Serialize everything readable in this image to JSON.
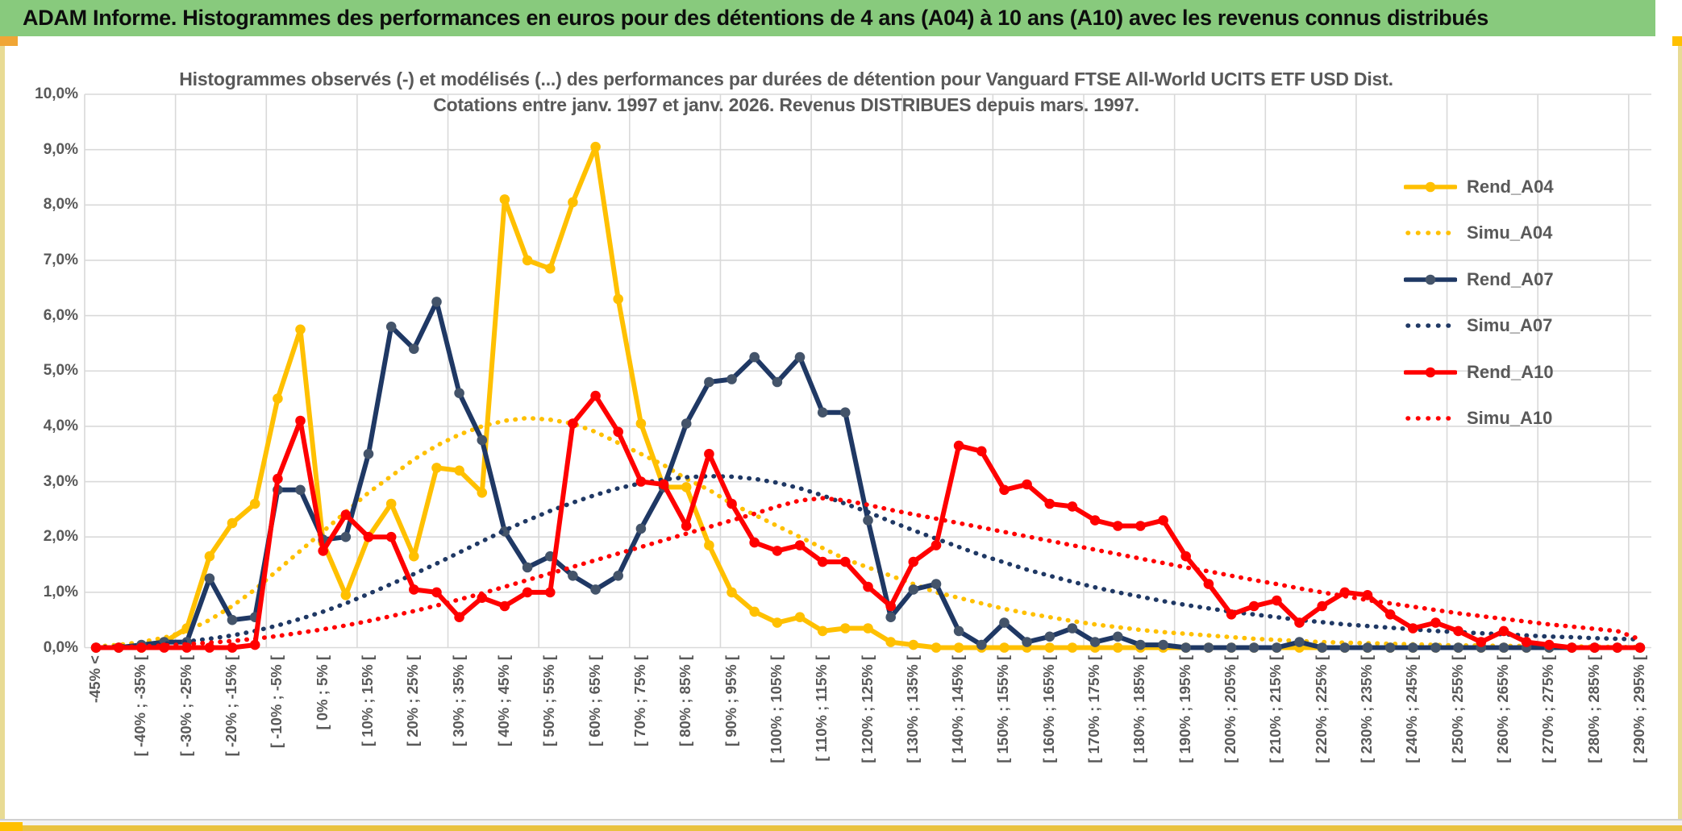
{
  "window": {
    "title": "ADAM Informe. Histogrammes des performances en euros pour des détentions de 4 ans (A04) à 10 ans (A10) avec les revenus connus distribués",
    "colors": {
      "titlebar_green": "#88CA7D",
      "text_gray": "#595959",
      "gridline_gray": "#D9D9D9",
      "gold": "#FFC000",
      "navy": "#1F3864",
      "navy_marker": "#44546A",
      "red": "#FF0000"
    }
  },
  "chart_data": {
    "type": "line",
    "title_line1": "Histogrammes observés (-) et modélisés (...) des performances par durées de détention pour Vanguard FTSE All-World UCITS ETF USD Dist.",
    "title_line2": "Cotations entre janv. 1997 et janv. 2026. Revenus DISTRIBUES depuis mars. 1997.",
    "ylabel": "",
    "xlabel": "",
    "ylim": [
      0,
      10
    ],
    "grid": true,
    "bins": 69,
    "label_interval": 2,
    "gridline_interval": 4,
    "y_tick_labels": [
      "0,0%",
      "1,0%",
      "2,0%",
      "3,0%",
      "4,0%",
      "5,0%",
      "6,0%",
      "7,0%",
      "8,0%",
      "9,0%",
      "10,0%"
    ],
    "x_tick_labels": [
      "-45% <",
      "[ -40% ; -35% [",
      "[ -30% ; -25% [",
      "[ -20% ; -15% [",
      "[ -10% ; -5% [",
      "[ 0% ; 5% [",
      "[ 10% ; 15% [",
      "[ 20% ; 25% [",
      "[ 30% ; 35% [",
      "[ 40% ; 45% [",
      "[ 50% ; 55% [",
      "[ 60% ; 65% [",
      "[ 70% ; 75% [",
      "[ 80% ; 85% [",
      "[ 90% ; 95% [",
      "[ 100% ; 105% [",
      "[ 110% ; 115% [",
      "[ 120% ; 125% [",
      "[ 130% ; 135% [",
      "[ 140% ; 145% [",
      "[ 150% ; 155% [",
      "[ 160% ; 165% [",
      "[ 170% ; 175% [",
      "[ 180% ; 185% [",
      "[ 190% ; 195% [",
      "[ 200% ; 205% [",
      "[ 210% ; 215% [",
      "[ 220% ; 225% [",
      "[ 230% ; 235% [",
      "[ 240% ; 245% [",
      "[ 250% ; 255% [",
      "[ 260% ; 265% [",
      "[ 270% ; 275% [",
      "[ 280% ; 285% [",
      "[ 290% ; 295% ["
    ],
    "series": [
      {
        "name": "Rend_A04",
        "line": "solid",
        "color": "#FFC000",
        "marker_color": "#FFC000",
        "values": [
          0,
          0,
          0,
          0.1,
          0.35,
          1.65,
          2.25,
          2.6,
          4.5,
          5.75,
          1.9,
          0.95,
          2.0,
          2.6,
          1.65,
          3.25,
          3.2,
          2.8,
          8.1,
          7.0,
          6.85,
          8.05,
          9.05,
          6.3,
          4.05,
          2.9,
          2.9,
          1.85,
          1.0,
          0.65,
          0.45,
          0.55,
          0.3,
          0.35,
          0.35,
          0.1,
          0.05,
          0,
          0,
          0,
          0,
          0,
          0,
          0,
          0,
          0,
          0,
          0,
          0,
          0,
          0,
          0,
          0,
          0,
          0,
          0,
          0,
          0,
          0,
          0,
          0,
          0,
          0,
          0,
          0,
          0,
          0,
          0,
          0
        ]
      },
      {
        "name": "Simu_A04",
        "line": "dotted",
        "color": "#FFC000",
        "values": [
          0.02,
          0.05,
          0.1,
          0.18,
          0.3,
          0.5,
          0.75,
          1.05,
          1.4,
          1.75,
          2.1,
          2.45,
          2.8,
          3.1,
          3.4,
          3.65,
          3.85,
          4.0,
          4.1,
          4.15,
          4.12,
          4.05,
          3.9,
          3.7,
          3.5,
          3.3,
          3.05,
          2.85,
          2.6,
          2.4,
          2.2,
          2.0,
          1.8,
          1.6,
          1.45,
          1.3,
          1.15,
          1.0,
          0.9,
          0.8,
          0.7,
          0.62,
          0.55,
          0.48,
          0.42,
          0.37,
          0.32,
          0.28,
          0.25,
          0.22,
          0.19,
          0.16,
          0.14,
          0.12,
          0.1,
          0.09,
          0.08,
          0.07,
          0.06,
          0.05,
          0.04,
          0.04,
          0.03,
          0.03,
          0.02,
          0.02,
          0.02,
          0.01,
          0.01
        ]
      },
      {
        "name": "Rend_A07",
        "line": "solid",
        "color": "#1F3864",
        "marker_color": "#44546A",
        "values": [
          0,
          0,
          0.05,
          0.1,
          0.1,
          1.25,
          0.5,
          0.55,
          2.85,
          2.85,
          1.95,
          2.0,
          3.5,
          5.8,
          5.4,
          6.25,
          4.6,
          3.75,
          2.1,
          1.45,
          1.65,
          1.3,
          1.05,
          1.3,
          2.15,
          2.9,
          4.05,
          4.8,
          4.85,
          5.25,
          4.8,
          5.25,
          4.25,
          4.25,
          2.3,
          0.55,
          1.05,
          1.15,
          0.3,
          0.05,
          0.45,
          0.1,
          0.2,
          0.35,
          0.1,
          0.2,
          0.05,
          0.05,
          0,
          0,
          0,
          0,
          0,
          0.1,
          0,
          0,
          0,
          0,
          0,
          0,
          0,
          0,
          0,
          0,
          0,
          0,
          0,
          0,
          0
        ]
      },
      {
        "name": "Simu_A07",
        "line": "dotted",
        "color": "#1F3864",
        "values": [
          0.01,
          0.02,
          0.04,
          0.07,
          0.11,
          0.16,
          0.22,
          0.3,
          0.4,
          0.52,
          0.65,
          0.8,
          0.97,
          1.15,
          1.33,
          1.52,
          1.72,
          1.92,
          2.12,
          2.3,
          2.47,
          2.62,
          2.76,
          2.88,
          2.97,
          3.04,
          3.08,
          3.1,
          3.09,
          3.05,
          2.98,
          2.88,
          2.75,
          2.6,
          2.45,
          2.28,
          2.12,
          1.97,
          1.82,
          1.67,
          1.54,
          1.41,
          1.3,
          1.19,
          1.09,
          1.0,
          0.92,
          0.84,
          0.77,
          0.71,
          0.65,
          0.6,
          0.55,
          0.5,
          0.46,
          0.42,
          0.39,
          0.36,
          0.33,
          0.3,
          0.28,
          0.26,
          0.24,
          0.22,
          0.2,
          0.19,
          0.17,
          0.16,
          0.15
        ]
      },
      {
        "name": "Rend_A10",
        "line": "solid",
        "color": "#FF0000",
        "marker_color": "#FF0000",
        "values": [
          0,
          0,
          0,
          0,
          0,
          0,
          0,
          0.05,
          3.05,
          4.1,
          1.75,
          2.4,
          2.0,
          2.0,
          1.05,
          1.0,
          0.55,
          0.9,
          0.75,
          1.0,
          1.0,
          4.05,
          4.55,
          3.9,
          3.0,
          2.95,
          2.2,
          3.5,
          2.6,
          1.9,
          1.75,
          1.85,
          1.55,
          1.55,
          1.1,
          0.75,
          1.55,
          1.85,
          3.65,
          3.55,
          2.85,
          2.95,
          2.6,
          2.55,
          2.3,
          2.2,
          2.2,
          2.3,
          1.65,
          1.15,
          0.6,
          0.75,
          0.85,
          0.45,
          0.75,
          1.0,
          0.95,
          0.6,
          0.35,
          0.45,
          0.3,
          0.1,
          0.3,
          0.1,
          0.05,
          0,
          0,
          0,
          0
        ]
      },
      {
        "name": "Simu_A10",
        "line": "dotted",
        "color": "#FF0000",
        "values": [
          0,
          0.01,
          0.02,
          0.04,
          0.06,
          0.09,
          0.12,
          0.16,
          0.21,
          0.27,
          0.33,
          0.4,
          0.48,
          0.57,
          0.66,
          0.76,
          0.87,
          0.98,
          1.1,
          1.22,
          1.34,
          1.46,
          1.58,
          1.7,
          1.82,
          1.94,
          2.06,
          2.18,
          2.3,
          2.42,
          2.55,
          2.66,
          2.7,
          2.66,
          2.58,
          2.49,
          2.41,
          2.33,
          2.25,
          2.17,
          2.09,
          2.01,
          1.93,
          1.85,
          1.77,
          1.69,
          1.61,
          1.53,
          1.45,
          1.38,
          1.3,
          1.22,
          1.15,
          1.07,
          1.0,
          0.93,
          0.86,
          0.8,
          0.74,
          0.68,
          0.62,
          0.57,
          0.52,
          0.47,
          0.42,
          0.38,
          0.34,
          0.3,
          0.15
        ]
      }
    ],
    "legend_position": "right-upper"
  },
  "legend": {
    "items": [
      {
        "label": "Rend_A04",
        "color": "#FFC000",
        "style": "solid",
        "marker_color": "#FFC000"
      },
      {
        "label": "Simu_A04",
        "color": "#FFC000",
        "style": "dotted"
      },
      {
        "label": "Rend_A07",
        "color": "#1F3864",
        "style": "solid",
        "marker_color": "#44546A"
      },
      {
        "label": "Simu_A07",
        "color": "#1F3864",
        "style": "dotted"
      },
      {
        "label": "Rend_A10",
        "color": "#FF0000",
        "style": "solid",
        "marker_color": "#FF0000"
      },
      {
        "label": "Simu_A10",
        "color": "#FF0000",
        "style": "dotted"
      }
    ]
  }
}
